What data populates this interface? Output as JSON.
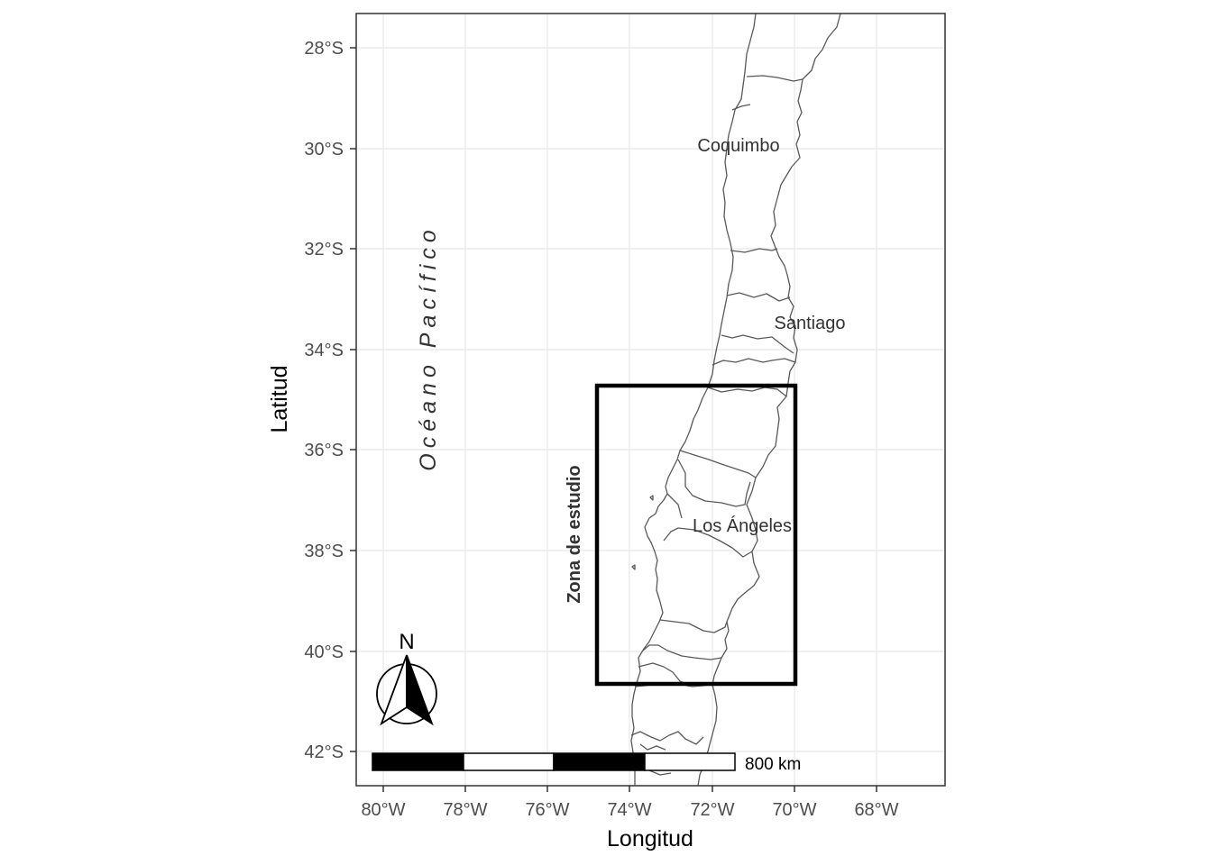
{
  "map": {
    "xlabel": "Longitud",
    "ylabel": "Latitud",
    "x_ticks": [
      "80°W",
      "78°W",
      "76°W",
      "74°W",
      "72°W",
      "70°W",
      "68°W"
    ],
    "y_ticks": [
      "28°S",
      "30°S",
      "32°S",
      "34°S",
      "36°S",
      "38°S",
      "40°S",
      "42°S"
    ],
    "ocean_label": "Océano Pacífico",
    "zone_label": "Zona de estudio",
    "north_label": "N",
    "scale_label": "800 km",
    "places": [
      {
        "name": "Coquimbo"
      },
      {
        "name": "Santiago"
      },
      {
        "name": "Los Ángeles"
      }
    ],
    "colors": {
      "background": "#ffffff",
      "grid": "#ebebeb",
      "coastline": "#595959",
      "frame": "#333333",
      "study_box": "#000000"
    }
  }
}
